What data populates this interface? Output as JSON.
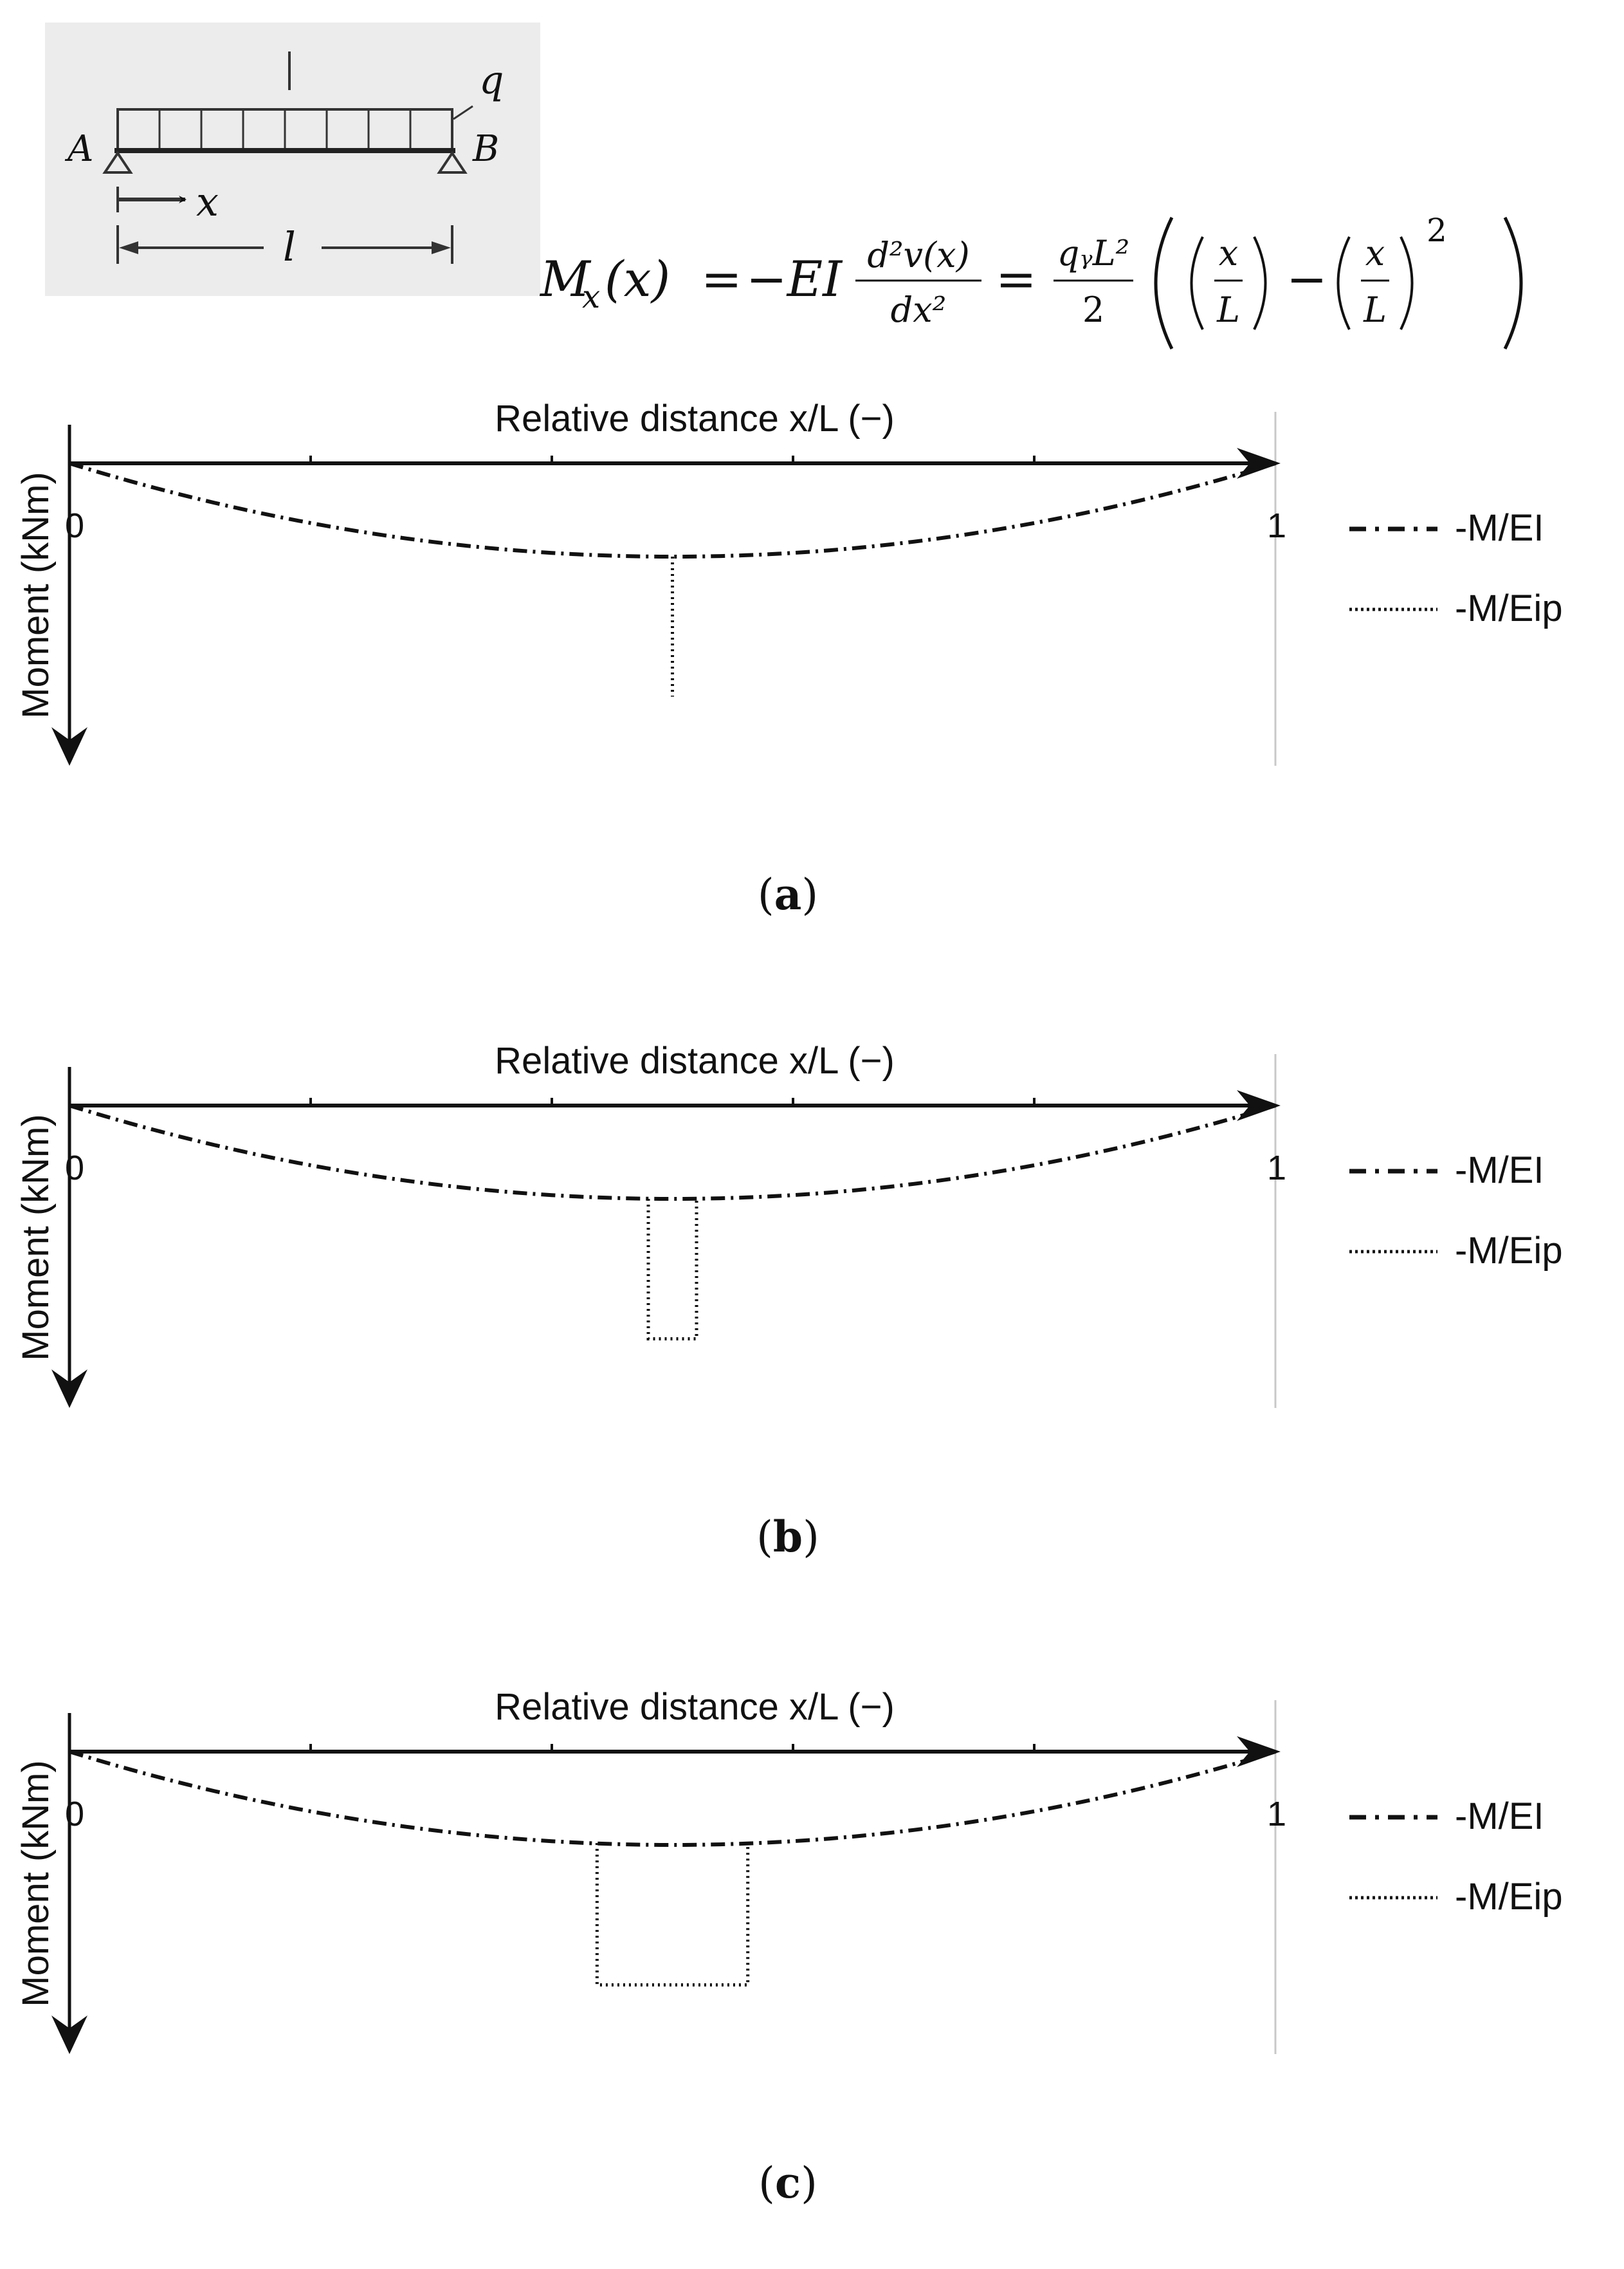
{
  "beam_sketch": {
    "support_left": "A",
    "support_right": "B",
    "load_label": "q",
    "coordinate_label": "x",
    "span_label": "l"
  },
  "formula": {
    "lhs": "M",
    "lhs_sub": "x",
    "lhs_arg": "(x)",
    "eq1": "=",
    "neg_ei": "−EI",
    "deriv_num": "d²v(x)",
    "deriv_den": "dx²",
    "eq2": "=",
    "coef_num": "qᵧL²",
    "coef_den": "2",
    "bracket_term1_num": "x",
    "bracket_term1_den": "L",
    "minus": "−",
    "bracket_term2_num": "x",
    "bracket_term2_den": "L",
    "power": "2"
  },
  "chart_data": [
    {
      "type": "line",
      "panel": "(a)",
      "caption_letter": "a",
      "xlabel": "Relative distance x/L (−)",
      "ylabel": "Moment (kNm)",
      "x_ticks": [
        0,
        0.2,
        0.4,
        0.6,
        0.8,
        1
      ],
      "x_tick_labels": [
        "0",
        "1"
      ],
      "xlim": [
        0,
        1
      ],
      "y_direction": "downward",
      "series": [
        {
          "name": "-M/EI",
          "style": "dash-dot",
          "x": [
            0,
            0.1,
            0.2,
            0.3,
            0.4,
            0.5,
            0.6,
            0.7,
            0.8,
            0.9,
            1
          ],
          "y": [
            0,
            0.36,
            0.64,
            0.84,
            0.96,
            1.0,
            0.96,
            0.84,
            0.64,
            0.36,
            0
          ]
        },
        {
          "name": "-M/Eip",
          "style": "dotted",
          "x": [
            0.5,
            0.5
          ],
          "y": [
            1.0,
            2.5
          ]
        }
      ],
      "legend_position": "right"
    },
    {
      "type": "line",
      "panel": "(b)",
      "caption_letter": "b",
      "xlabel": "Relative distance x/L (−)",
      "ylabel": "Moment (kNm)",
      "x_ticks": [
        0,
        0.2,
        0.4,
        0.6,
        0.8,
        1
      ],
      "x_tick_labels": [
        "0",
        "1"
      ],
      "xlim": [
        0,
        1
      ],
      "y_direction": "downward",
      "series": [
        {
          "name": "-M/EI",
          "style": "dash-dot",
          "x": [
            0,
            0.1,
            0.2,
            0.3,
            0.4,
            0.5,
            0.6,
            0.7,
            0.8,
            0.9,
            1
          ],
          "y": [
            0,
            0.36,
            0.64,
            0.84,
            0.96,
            1.0,
            0.96,
            0.84,
            0.64,
            0.36,
            0
          ]
        },
        {
          "name": "-M/Eip",
          "style": "dotted",
          "x": [
            0.48,
            0.48,
            0.52,
            0.52
          ],
          "y": [
            1.0,
            2.5,
            2.5,
            1.0
          ]
        }
      ],
      "legend_position": "right"
    },
    {
      "type": "line",
      "panel": "(c)",
      "caption_letter": "c",
      "xlabel": "Relative distance x/L (−)",
      "ylabel": "Moment (kNm)",
      "x_ticks": [
        0,
        0.2,
        0.4,
        0.6,
        0.8,
        1
      ],
      "x_tick_labels": [
        "0",
        "1"
      ],
      "xlim": [
        0,
        1
      ],
      "y_direction": "downward",
      "series": [
        {
          "name": "-M/EI",
          "style": "dash-dot",
          "x": [
            0,
            0.1,
            0.2,
            0.3,
            0.4,
            0.5,
            0.6,
            0.7,
            0.8,
            0.9,
            1
          ],
          "y": [
            0,
            0.36,
            0.64,
            0.84,
            0.96,
            1.0,
            0.96,
            0.84,
            0.64,
            0.36,
            0
          ]
        },
        {
          "name": "-M/Eip",
          "style": "dotted",
          "x": [
            0.4375,
            0.4375,
            0.5625,
            0.5625
          ],
          "y": [
            0.98,
            2.5,
            2.5,
            0.98
          ]
        }
      ],
      "legend_position": "right"
    }
  ]
}
